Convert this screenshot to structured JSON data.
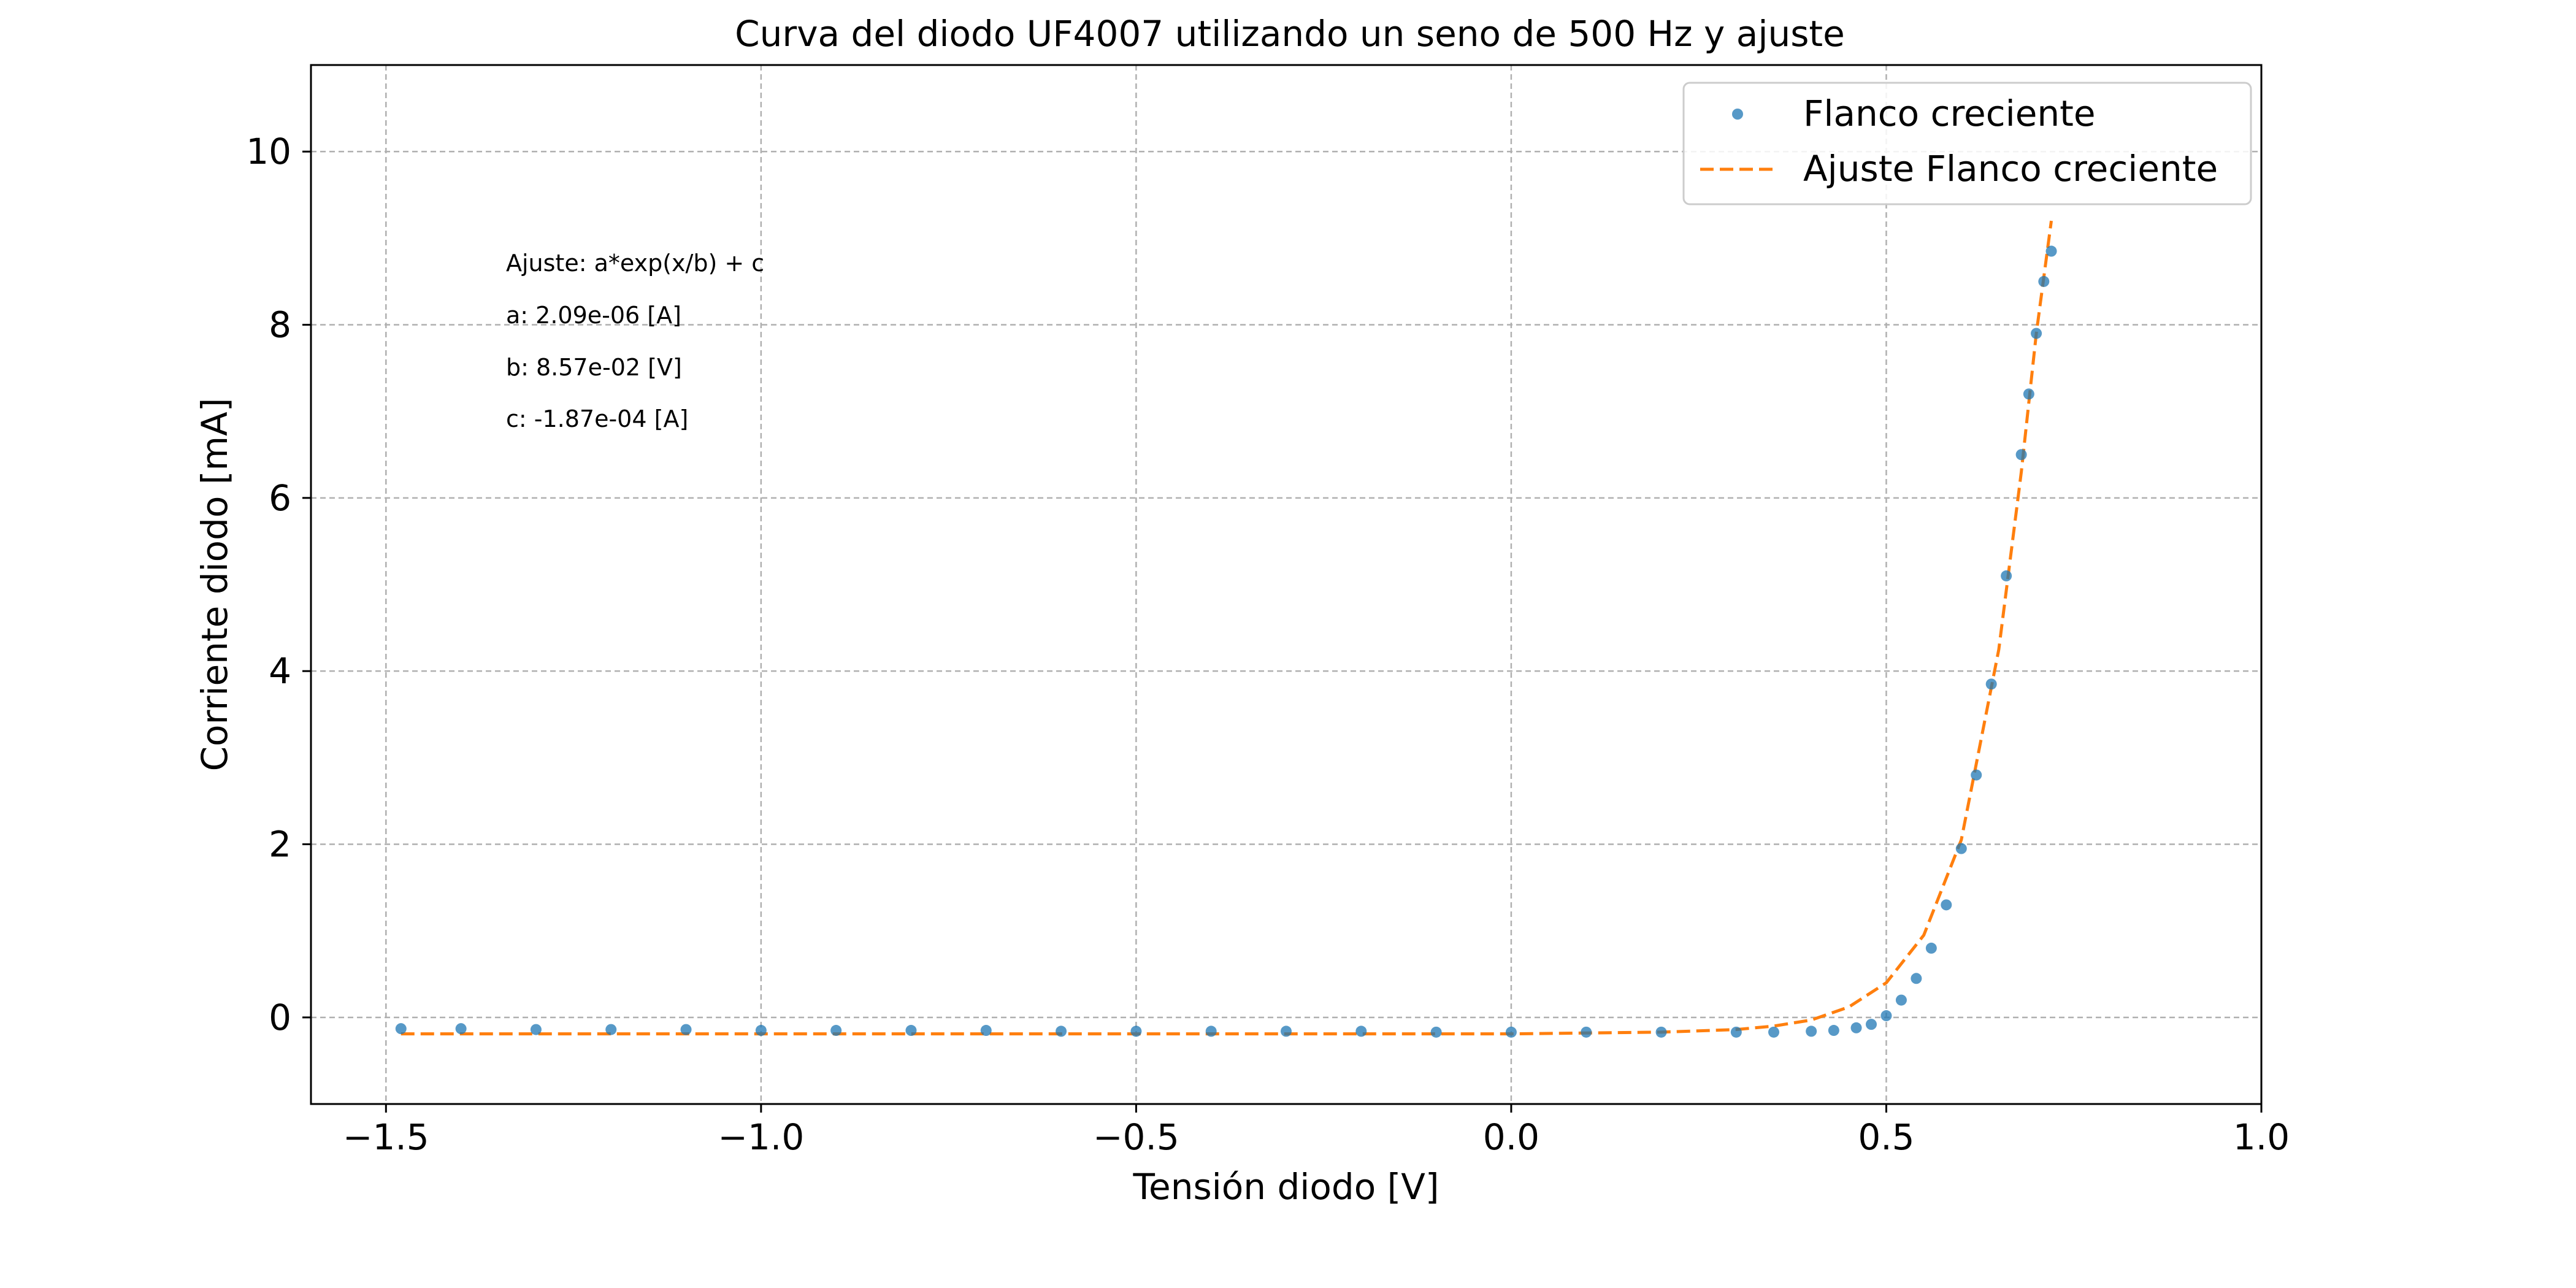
{
  "chart_data": {
    "type": "scatter",
    "title": "Curva del diodo UF4007 utilizando un seno de 500 Hz y ajuste",
    "xlabel": "Tensión diodo [V]",
    "ylabel": "Corriente diodo [mA]",
    "xlim": [
      -1.6,
      1.0
    ],
    "ylim": [
      -1.0,
      11.0
    ],
    "xticks": [
      -1.5,
      -1.0,
      -0.5,
      0.0,
      0.5,
      1.0
    ],
    "xtick_labels": [
      "−1.5",
      "−1.0",
      "−0.5",
      "0.0",
      "0.5",
      "1.0"
    ],
    "yticks": [
      0,
      2,
      4,
      6,
      8,
      10
    ],
    "ytick_labels": [
      "0",
      "2",
      "4",
      "6",
      "8",
      "10"
    ],
    "grid": true,
    "legend_position": "top-right",
    "series": [
      {
        "name": "Flanco creciente",
        "kind": "markers",
        "color": "#1f77b4",
        "x": [
          -1.48,
          -1.4,
          -1.3,
          -1.2,
          -1.1,
          -1.0,
          -0.9,
          -0.8,
          -0.7,
          -0.6,
          -0.5,
          -0.4,
          -0.3,
          -0.2,
          -0.1,
          0.0,
          0.1,
          0.2,
          0.3,
          0.35,
          0.4,
          0.43,
          0.46,
          0.48,
          0.5,
          0.52,
          0.54,
          0.56,
          0.58,
          0.6,
          0.62,
          0.64,
          0.66,
          0.68,
          0.69,
          0.7,
          0.71,
          0.72
        ],
        "y": [
          -0.13,
          -0.13,
          -0.14,
          -0.14,
          -0.14,
          -0.15,
          -0.15,
          -0.15,
          -0.15,
          -0.16,
          -0.16,
          -0.16,
          -0.16,
          -0.16,
          -0.17,
          -0.17,
          -0.17,
          -0.17,
          -0.17,
          -0.17,
          -0.16,
          -0.15,
          -0.12,
          -0.08,
          0.02,
          0.2,
          0.45,
          0.8,
          1.3,
          1.95,
          2.8,
          3.85,
          5.1,
          6.5,
          7.2,
          7.9,
          8.5,
          8.85
        ]
      },
      {
        "name": "Ajuste Flanco creciente",
        "kind": "dashed-line",
        "color": "#ff7f0e",
        "x": [
          -1.48,
          -1.0,
          -0.5,
          0.0,
          0.2,
          0.3,
          0.35,
          0.4,
          0.45,
          0.5,
          0.55,
          0.6,
          0.65,
          0.68,
          0.7,
          0.72
        ],
        "y": [
          -0.19,
          -0.19,
          -0.19,
          -0.19,
          -0.17,
          -0.14,
          -0.1,
          -0.03,
          0.12,
          0.4,
          0.95,
          2.05,
          4.25,
          6.3,
          7.9,
          9.2
        ]
      }
    ],
    "annotations": [
      "Ajuste: a*exp(x/b) + c",
      "a: 2.09e-06 [A]",
      "b: 8.57e-02 [V]",
      "c: -1.87e-04 [A]"
    ]
  }
}
